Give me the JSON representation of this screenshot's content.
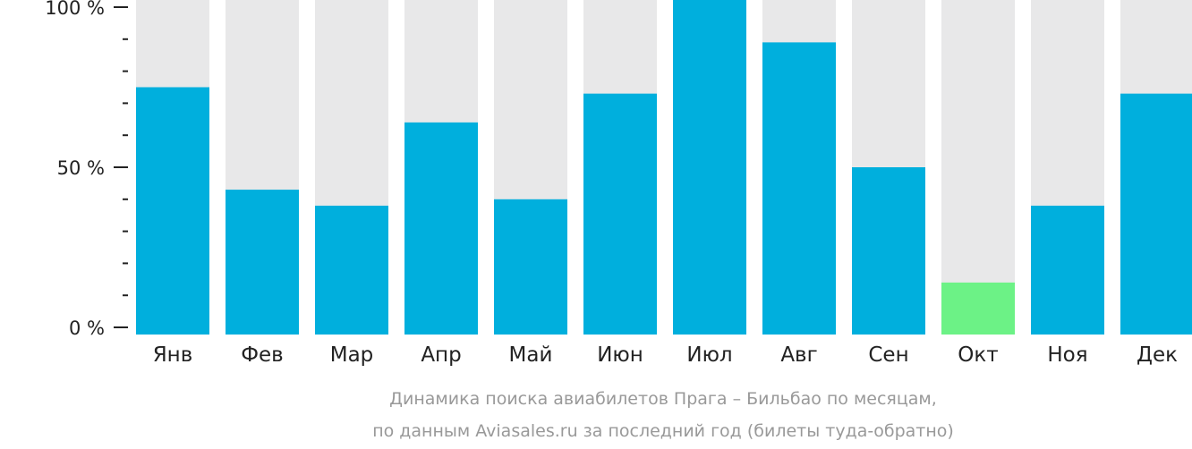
{
  "chart_data": {
    "type": "bar",
    "categories": [
      "Янв",
      "Фев",
      "Мар",
      "Апр",
      "Май",
      "Июн",
      "Июл",
      "Авг",
      "Сен",
      "Окт",
      "Ноя",
      "Дек"
    ],
    "values": [
      75,
      43,
      38,
      64,
      40,
      73,
      100,
      89,
      50,
      14,
      38,
      73
    ],
    "ylim": [
      0,
      100
    ],
    "y_ticks": [
      {
        "value": 100,
        "label": "100 %"
      },
      {
        "value": 50,
        "label": "50 %"
      },
      {
        "value": 0,
        "label": "0 %"
      }
    ],
    "minor_tick_step": 10,
    "caption_lines": [
      "Динамика поиска авиабилетов Прага – Бильбао по месяцам,",
      "по данным Aviasales.ru за последний год (билеты туда-обратно)"
    ],
    "colors": {
      "bar": "#00AFDD",
      "bar_min": "#6CF286",
      "background_bar": "#E8E8E9",
      "axis": "#222222",
      "caption": "#999999"
    },
    "highlight_index": 9
  }
}
